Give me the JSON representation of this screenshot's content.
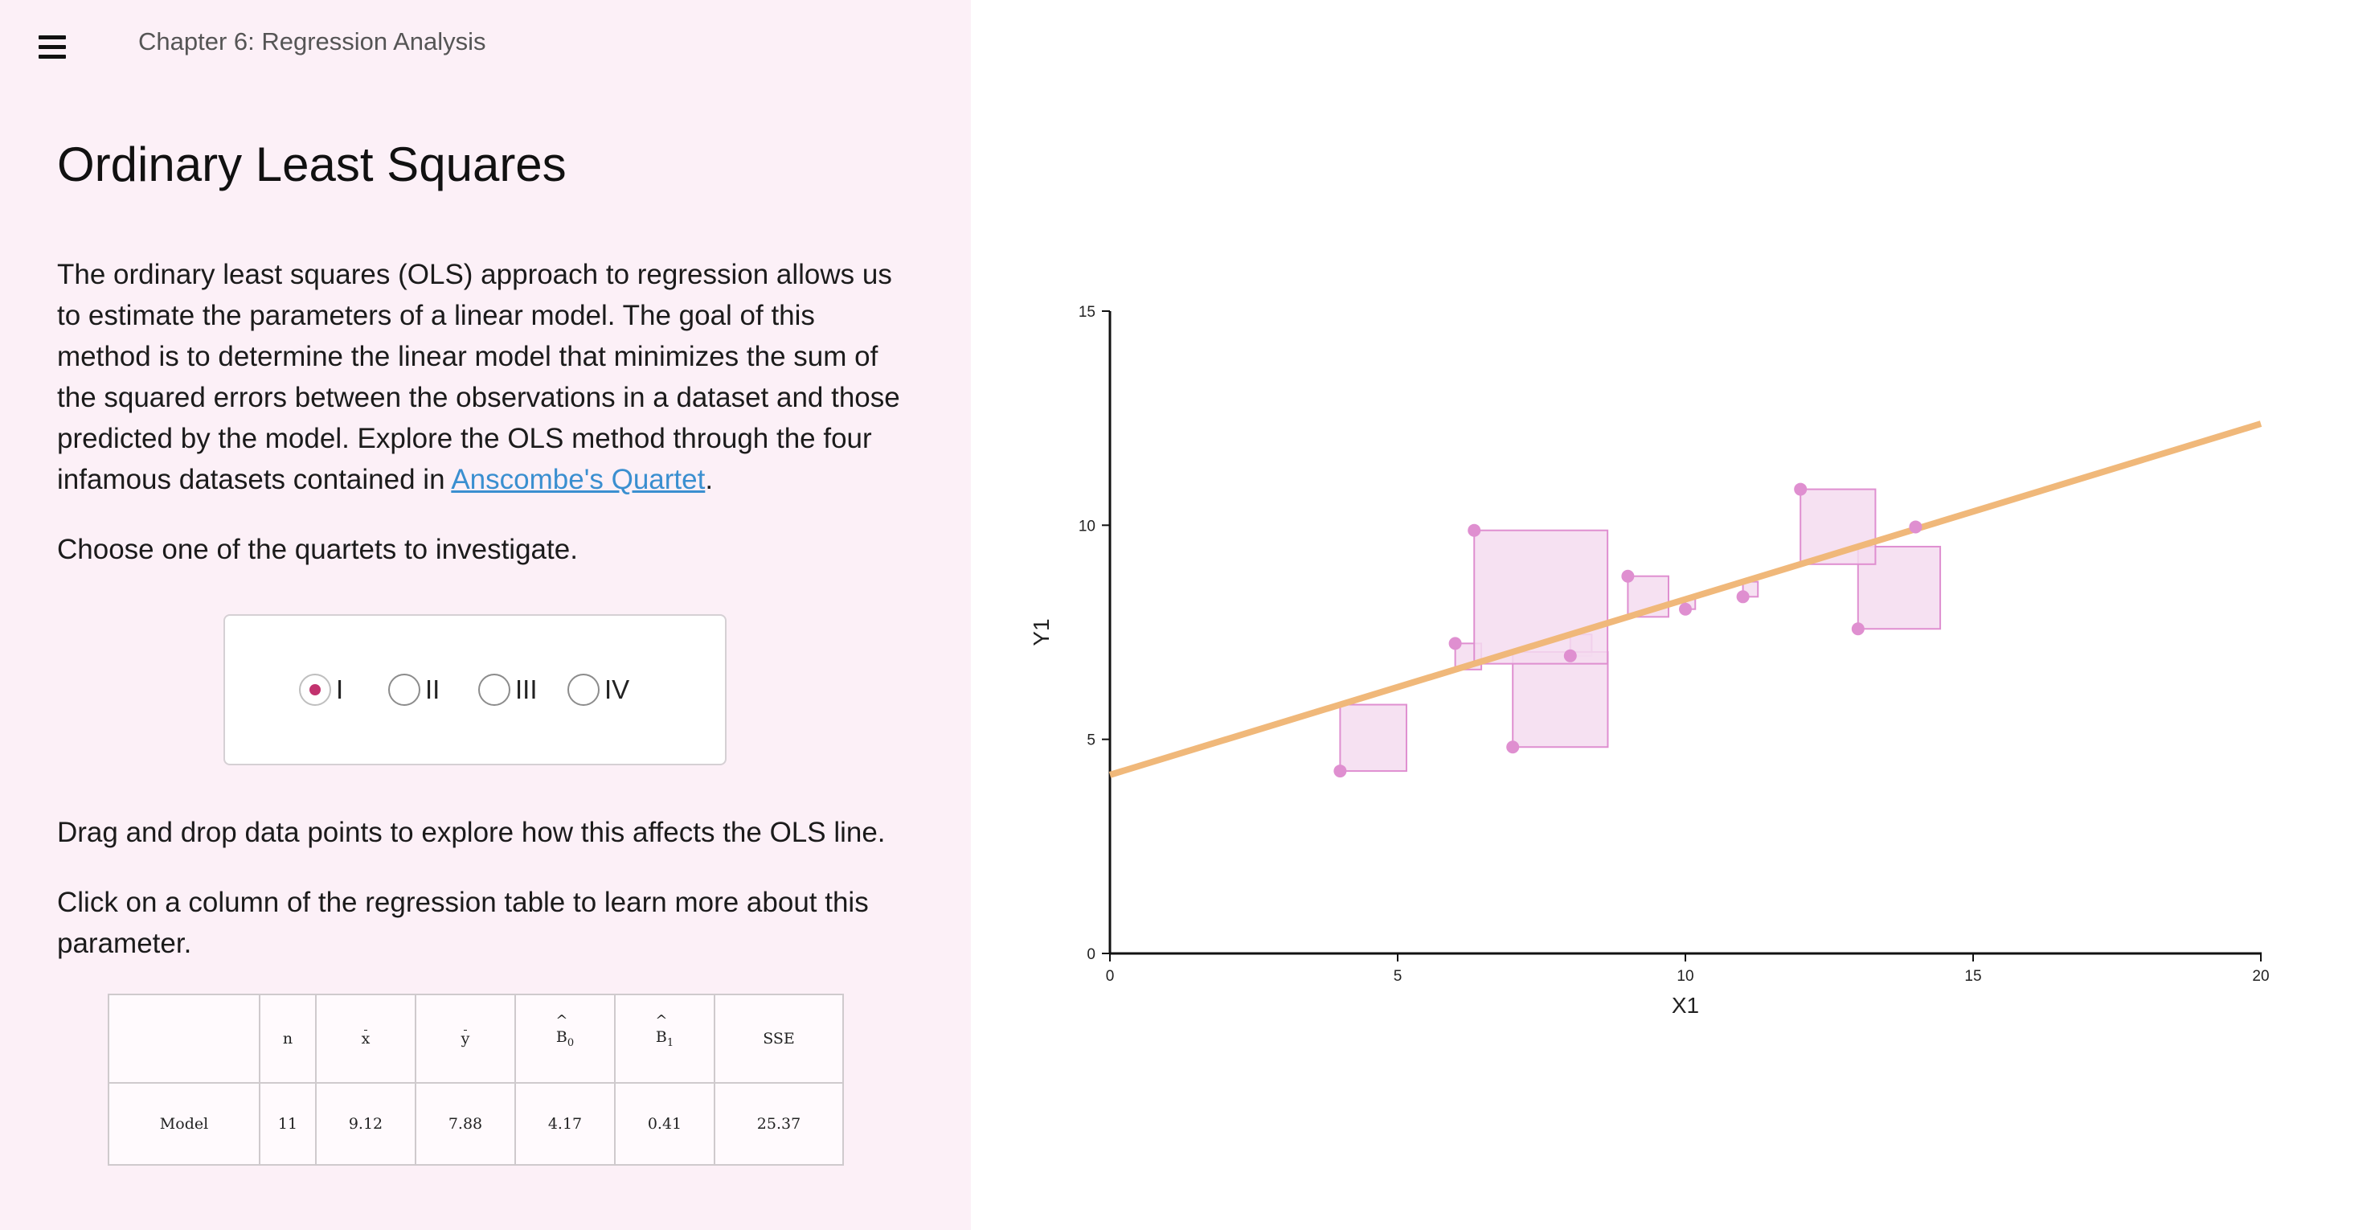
{
  "header": {
    "menu_icon": "hamburger-menu-icon",
    "chapter_title": "Chapter 6: Regression Analysis"
  },
  "page_title": "Ordinary Least Squares",
  "intro": {
    "text_before_link": "The ordinary least squares (OLS) approach to regression allows us to estimate the parameters of a linear model. The goal of this method is to determine the linear model that minimizes the sum of the squared errors between the observations in a dataset and those predicted by the model. Explore the OLS method through the four infamous datasets contained in ",
    "link_text": "Anscombe's Quartet",
    "text_after_link": "."
  },
  "choose_text": "Choose one of the quartets to investigate.",
  "quartet_options": [
    {
      "label": "I",
      "checked": true
    },
    {
      "label": "II",
      "checked": false
    },
    {
      "label": "III",
      "checked": false
    },
    {
      "label": "IV",
      "checked": false
    }
  ],
  "drag_text": "Drag and drop data points to explore how this affects the OLS line.",
  "click_text": "Click on a column of the regression table to learn more about this parameter.",
  "regression_table": {
    "headers": {
      "n": "n",
      "xbar": "x",
      "ybar": "y",
      "b0_symbol": "B",
      "b0_sub": "0",
      "b1_symbol": "B",
      "b1_sub": "1",
      "sse": "SSE"
    },
    "row": {
      "label": "Model",
      "n": "11",
      "xbar": "9.12",
      "ybar": "7.88",
      "b0": "4.17",
      "b1": "0.41",
      "sse": "25.37"
    }
  },
  "chart_data": {
    "type": "scatter",
    "xlabel": "X1",
    "ylabel": "Y1",
    "xlim": [
      0,
      20
    ],
    "ylim": [
      0,
      15
    ],
    "xticks": [
      0,
      5,
      10,
      15,
      20
    ],
    "yticks": [
      0,
      5,
      10,
      15
    ],
    "points": [
      {
        "x": 10,
        "y": 8.04
      },
      {
        "x": 8,
        "y": 6.95
      },
      {
        "x": 13,
        "y": 7.58
      },
      {
        "x": 9,
        "y": 8.81
      },
      {
        "x": 11,
        "y": 8.33
      },
      {
        "x": 14,
        "y": 9.96
      },
      {
        "x": 6,
        "y": 7.24
      },
      {
        "x": 4,
        "y": 4.26
      },
      {
        "x": 12,
        "y": 10.84
      },
      {
        "x": 7,
        "y": 4.82
      },
      {
        "x": 6.33,
        "y": 9.88
      }
    ],
    "regression_line": {
      "intercept": 4.17,
      "slope": 0.41
    },
    "colors": {
      "point": "#df8fd0",
      "square_fill": "#f5dcf0",
      "square_stroke": "#df8fd0",
      "line": "#f0b87a",
      "axis": "#111111"
    }
  }
}
